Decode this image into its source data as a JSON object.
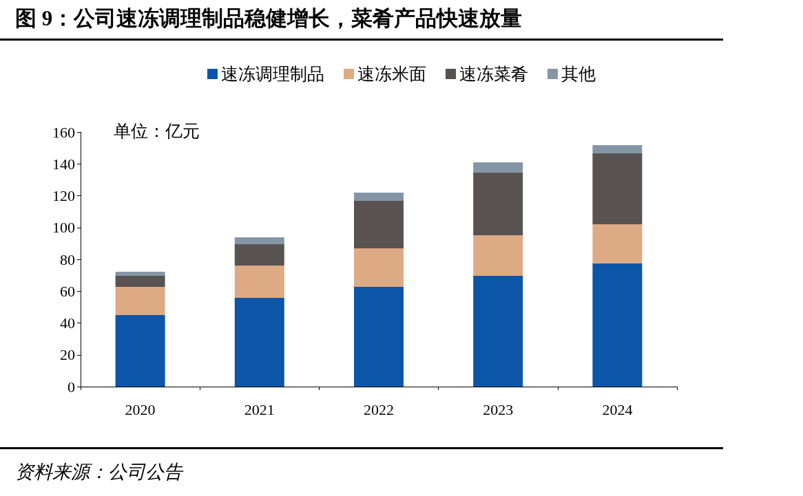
{
  "chart_data": {
    "type": "bar",
    "title": "图 9：公司速冻调理制品稳健增长，菜肴产品快速放量",
    "categories": [
      "2020",
      "2021",
      "2022",
      "2023",
      "2024"
    ],
    "stacked": true,
    "series": [
      {
        "name": "速冻调理制品",
        "color": "#0b56a8",
        "values": [
          45.0,
          55.8,
          62.7,
          69.6,
          77.4
        ]
      },
      {
        "name": "速冻米面",
        "color": "#deaa84",
        "values": [
          17.7,
          20.3,
          24.2,
          25.5,
          24.7
        ]
      },
      {
        "name": "速冻菜肴",
        "color": "#595252",
        "values": [
          6.9,
          13.4,
          29.9,
          39.4,
          44.5
        ]
      },
      {
        "name": "其他",
        "color": "#8496a6",
        "values": [
          2.6,
          4.3,
          5.1,
          6.5,
          5.2
        ]
      }
    ],
    "ylim": [
      0,
      160
    ],
    "yticks": [
      0,
      20,
      40,
      60,
      80,
      100,
      120,
      140,
      160
    ],
    "grid": false,
    "legend": "top",
    "annotations": [
      "单位：亿元",
      "资料来源：公司公告"
    ]
  }
}
